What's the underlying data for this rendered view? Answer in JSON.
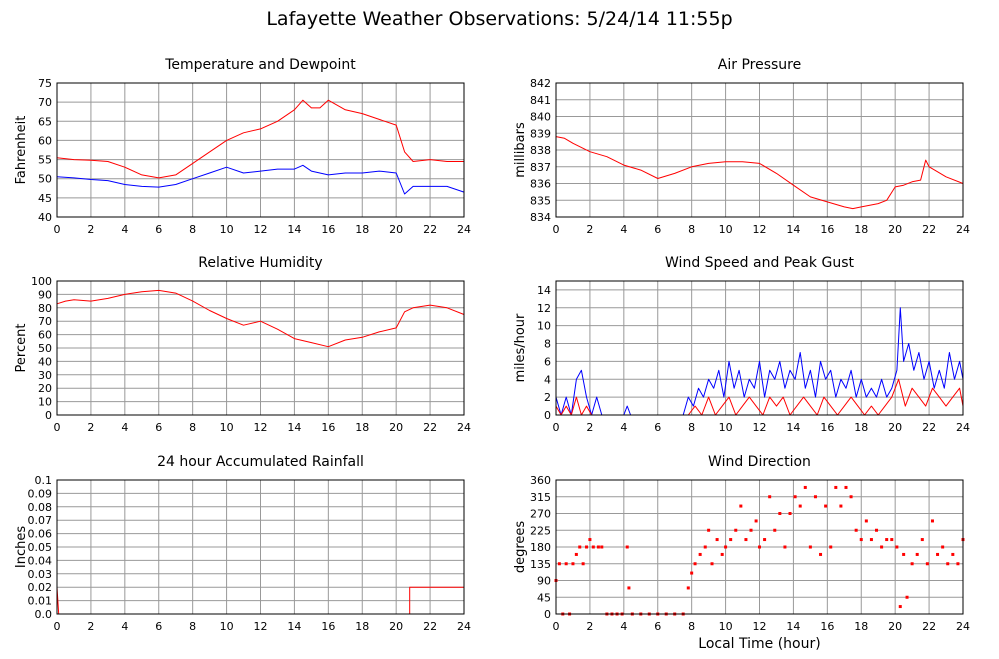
{
  "page": {
    "title": "Lafayette Weather Observations: 5/24/14 11:55p"
  },
  "colors": {
    "red": "#ff0000",
    "blue": "#0000ff",
    "grid": "#999999",
    "frame": "#000000"
  },
  "chart_data": [
    {
      "id": "temp",
      "type": "line",
      "title": "Temperature and Dewpoint",
      "ylabel": "Fahrenheit",
      "xlabel": "",
      "xlim": [
        0,
        24
      ],
      "ylim": [
        40,
        75
      ],
      "xticks": [
        0,
        2,
        4,
        6,
        8,
        10,
        12,
        14,
        16,
        18,
        20,
        22,
        24
      ],
      "yticks": [
        40,
        45,
        50,
        55,
        60,
        65,
        70,
        75
      ],
      "grid": true,
      "series": [
        {
          "color": "#ff0000",
          "x": [
            0,
            1,
            2,
            3,
            4,
            5,
            6,
            7,
            8,
            9,
            10,
            11,
            12,
            13,
            14,
            14.5,
            15,
            15.5,
            16,
            17,
            18,
            19,
            20,
            20.5,
            21,
            22,
            23,
            24
          ],
          "y": [
            55.5,
            55,
            54.8,
            54.5,
            53,
            51,
            50.2,
            51,
            54,
            57,
            60,
            62,
            63,
            65,
            68,
            70.5,
            68.5,
            68.5,
            70.5,
            68,
            67,
            65.5,
            64,
            57,
            54.5,
            55,
            54.5,
            54.5
          ]
        },
        {
          "color": "#0000ff",
          "x": [
            0,
            1,
            2,
            3,
            4,
            5,
            6,
            7,
            8,
            9,
            10,
            11,
            12,
            13,
            14,
            14.5,
            15,
            16,
            17,
            18,
            19,
            20,
            20.5,
            21,
            22,
            23,
            24
          ],
          "y": [
            50.5,
            50.2,
            49.8,
            49.5,
            48.5,
            48,
            47.8,
            48.5,
            50,
            51.5,
            53,
            51.5,
            52,
            52.5,
            52.5,
            53.5,
            52,
            51,
            51.5,
            51.5,
            52,
            51.5,
            46,
            48,
            48,
            48,
            46.5
          ]
        }
      ]
    },
    {
      "id": "pressure",
      "type": "line",
      "title": "Air Pressure",
      "ylabel": "millibars",
      "xlabel": "",
      "xlim": [
        0,
        24
      ],
      "ylim": [
        834,
        842
      ],
      "xticks": [
        0,
        2,
        4,
        6,
        8,
        10,
        12,
        14,
        16,
        18,
        20,
        22,
        24
      ],
      "yticks": [
        834,
        835,
        836,
        837,
        838,
        839,
        840,
        841,
        842
      ],
      "grid": true,
      "series": [
        {
          "color": "#ff0000",
          "x": [
            0,
            0.5,
            1,
            2,
            3,
            4,
            5,
            6,
            7,
            8,
            9,
            10,
            11,
            12,
            13,
            14,
            15,
            16,
            17,
            17.5,
            18,
            19,
            19.5,
            20,
            20.5,
            21,
            21.5,
            21.8,
            22,
            22.5,
            23,
            24
          ],
          "y": [
            838.8,
            838.7,
            838.4,
            837.9,
            837.6,
            837.1,
            836.8,
            836.3,
            836.6,
            837,
            837.2,
            837.3,
            837.3,
            837.2,
            836.6,
            835.9,
            835.2,
            834.9,
            834.6,
            834.5,
            834.6,
            834.8,
            835,
            835.8,
            835.9,
            836.1,
            836.2,
            837.4,
            837,
            836.7,
            836.4,
            836
          ]
        }
      ]
    },
    {
      "id": "humidity",
      "type": "line",
      "title": "Relative Humidity",
      "ylabel": "Percent",
      "xlabel": "",
      "xlim": [
        0,
        24
      ],
      "ylim": [
        0,
        100
      ],
      "xticks": [
        0,
        2,
        4,
        6,
        8,
        10,
        12,
        14,
        16,
        18,
        20,
        22,
        24
      ],
      "yticks": [
        0,
        10,
        20,
        30,
        40,
        50,
        60,
        70,
        80,
        90,
        100
      ],
      "grid": true,
      "series": [
        {
          "color": "#ff0000",
          "x": [
            0,
            0.5,
            1,
            2,
            3,
            4,
            5,
            6,
            7,
            8,
            9,
            10,
            11,
            12,
            13,
            14,
            15,
            16,
            17,
            18,
            19,
            20,
            20.5,
            21,
            22,
            23,
            24
          ],
          "y": [
            83,
            85,
            86,
            85,
            87,
            90,
            92,
            93,
            91,
            85,
            78,
            72,
            67,
            70,
            64,
            57,
            54,
            51,
            56,
            58,
            62,
            65,
            77,
            80,
            82,
            80,
            75
          ]
        }
      ]
    },
    {
      "id": "wind",
      "type": "line",
      "title": "Wind Speed and Peak Gust",
      "ylabel": "miles/hour",
      "xlabel": "",
      "xlim": [
        0,
        24
      ],
      "ylim": [
        0,
        15
      ],
      "xticks": [
        0,
        2,
        4,
        6,
        8,
        10,
        12,
        14,
        16,
        18,
        20,
        22,
        24
      ],
      "yticks": [
        0,
        2,
        4,
        6,
        8,
        10,
        12,
        14
      ],
      "grid": true,
      "series": [
        {
          "color": "#0000ff",
          "x": [
            0,
            0.3,
            0.6,
            0.9,
            1.2,
            1.5,
            1.8,
            2.1,
            2.4,
            2.7,
            3,
            4,
            4.2,
            4.4,
            4.6,
            7.5,
            7.8,
            8.1,
            8.4,
            8.7,
            9,
            9.3,
            9.6,
            9.9,
            10.2,
            10.5,
            10.8,
            11.1,
            11.4,
            11.7,
            12,
            12.3,
            12.6,
            12.9,
            13.2,
            13.5,
            13.8,
            14.1,
            14.4,
            14.7,
            15,
            15.3,
            15.6,
            15.9,
            16.2,
            16.5,
            16.8,
            17.1,
            17.4,
            17.7,
            18,
            18.3,
            18.6,
            18.9,
            19.2,
            19.5,
            19.8,
            20.1,
            20.3,
            20.5,
            20.8,
            21.1,
            21.4,
            21.7,
            22,
            22.3,
            22.6,
            22.9,
            23.2,
            23.5,
            23.8,
            24
          ],
          "y": [
            2,
            0,
            2,
            0,
            4,
            5,
            2,
            0,
            2,
            0,
            0,
            0,
            1,
            0,
            0,
            0,
            2,
            1,
            3,
            2,
            4,
            3,
            5,
            2,
            6,
            3,
            5,
            2,
            4,
            3,
            6,
            2,
            5,
            4,
            6,
            3,
            5,
            4,
            7,
            3,
            5,
            2,
            6,
            4,
            5,
            2,
            4,
            3,
            5,
            2,
            4,
            2,
            3,
            2,
            4,
            2,
            3,
            5,
            12,
            6,
            8,
            5,
            7,
            4,
            6,
            3,
            5,
            3,
            7,
            4,
            6,
            4
          ]
        },
        {
          "color": "#ff0000",
          "x": [
            0,
            0.3,
            0.6,
            0.9,
            1.2,
            1.5,
            1.8,
            2.1,
            2.4,
            7.8,
            8.2,
            8.6,
            9,
            9.4,
            9.8,
            10.2,
            10.6,
            11,
            11.4,
            11.8,
            12.2,
            12.6,
            13,
            13.4,
            13.8,
            14.2,
            14.6,
            15,
            15.4,
            15.8,
            16.2,
            16.6,
            17,
            17.4,
            17.8,
            18.2,
            18.6,
            19,
            19.4,
            19.8,
            20.2,
            20.6,
            21,
            21.4,
            21.8,
            22.2,
            22.6,
            23,
            23.4,
            23.8,
            24
          ],
          "y": [
            1,
            0,
            1,
            0,
            2,
            0,
            1,
            0,
            0,
            0,
            1,
            0,
            2,
            0,
            1,
            2,
            0,
            1,
            2,
            1,
            0,
            2,
            1,
            2,
            0,
            1,
            2,
            1,
            0,
            2,
            1,
            0,
            1,
            2,
            1,
            0,
            1,
            0,
            1,
            2,
            4,
            1,
            3,
            2,
            1,
            3,
            2,
            1,
            2,
            3,
            1
          ]
        }
      ]
    },
    {
      "id": "rain",
      "type": "line",
      "title": "24 hour Accumulated Rainfall",
      "ylabel": "Inches",
      "xlabel": "",
      "xlim": [
        0,
        24
      ],
      "ylim": [
        0,
        0.1
      ],
      "xticks": [
        0,
        2,
        4,
        6,
        8,
        10,
        12,
        14,
        16,
        18,
        20,
        22,
        24
      ],
      "yticks": [
        "0.0",
        "0.01",
        "0.02",
        "0.03",
        "0.04",
        "0.05",
        "0.06",
        "0.07",
        "0.08",
        "0.09",
        "0.1"
      ],
      "grid": true,
      "series": [
        {
          "color": "#ff0000",
          "x": [
            0,
            0.1,
            20.8,
            20.8,
            24
          ],
          "y": [
            0.02,
            0,
            0,
            0.02,
            0.02
          ]
        }
      ]
    },
    {
      "id": "direction",
      "type": "scatter",
      "title": "Wind Direction",
      "ylabel": "degrees",
      "xlabel": "Local Time (hour)",
      "xlim": [
        0,
        24
      ],
      "ylim": [
        0,
        360
      ],
      "xticks": [
        0,
        2,
        4,
        6,
        8,
        10,
        12,
        14,
        16,
        18,
        20,
        22,
        24
      ],
      "yticks": [
        0,
        45,
        90,
        135,
        180,
        225,
        270,
        315,
        360
      ],
      "grid": true,
      "series": [
        {
          "color": "#ff0000",
          "x": [
            0,
            0.2,
            0.4,
            0.6,
            0.8,
            1,
            1.2,
            1.4,
            1.6,
            1.8,
            2,
            2.2,
            2.5,
            2.7,
            3,
            3.3,
            3.6,
            3.9,
            4.2,
            4.3,
            4.5,
            5,
            5.5,
            6,
            6.5,
            7,
            7.5,
            7.8,
            8,
            8.2,
            8.5,
            8.8,
            9,
            9.2,
            9.5,
            9.8,
            10,
            10.3,
            10.6,
            10.9,
            11.2,
            11.5,
            11.8,
            12,
            12.3,
            12.6,
            12.9,
            13.2,
            13.5,
            13.8,
            14.1,
            14.4,
            14.7,
            15,
            15.3,
            15.6,
            15.9,
            16.2,
            16.5,
            16.8,
            17.1,
            17.4,
            17.7,
            18,
            18.3,
            18.6,
            18.9,
            19.2,
            19.5,
            19.8,
            20.1,
            20.3,
            20.5,
            20.7,
            21,
            21.3,
            21.6,
            21.9,
            22.2,
            22.5,
            22.8,
            23.1,
            23.4,
            23.7,
            24
          ],
          "y": [
            90,
            135,
            0,
            135,
            0,
            135,
            160,
            180,
            135,
            180,
            200,
            180,
            180,
            180,
            0,
            0,
            0,
            0,
            180,
            70,
            0,
            0,
            0,
            0,
            0,
            0,
            0,
            70,
            110,
            135,
            160,
            180,
            225,
            135,
            200,
            160,
            180,
            200,
            225,
            290,
            200,
            225,
            250,
            180,
            200,
            315,
            225,
            270,
            180,
            270,
            315,
            290,
            340,
            180,
            315,
            160,
            290,
            180,
            340,
            290,
            340,
            315,
            225,
            200,
            250,
            200,
            225,
            180,
            200,
            200,
            180,
            20,
            160,
            45,
            135,
            160,
            200,
            135,
            250,
            160,
            180,
            135,
            160,
            135,
            200
          ]
        }
      ]
    }
  ]
}
